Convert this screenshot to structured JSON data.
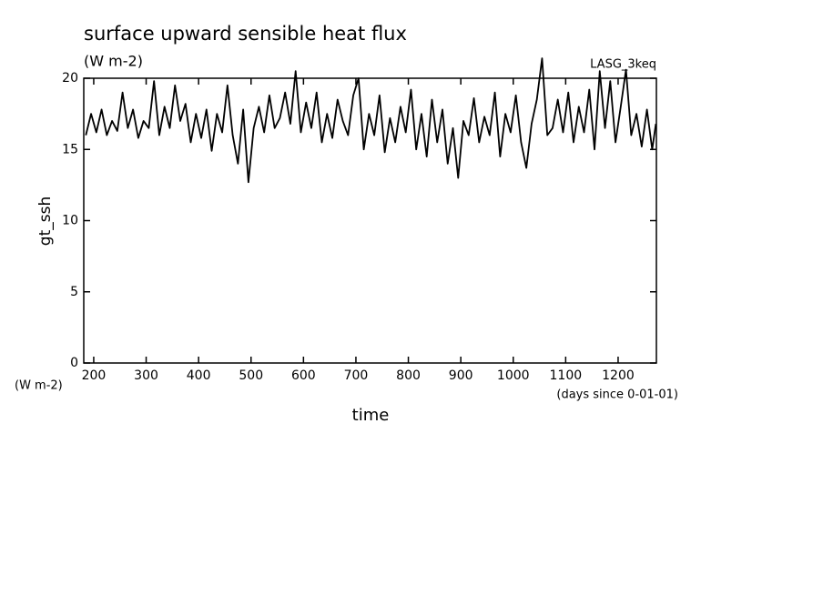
{
  "chart_data": {
    "type": "line",
    "title": "surface upward sensible heat flux",
    "subtitle": "(W m-2)",
    "annotation": "LASG_3keq",
    "y_label": "gt_ssh",
    "y_units": "(W m-2)",
    "x_label": "time",
    "x_units": "(days since 0-01-01)",
    "color": "#000000",
    "x": [
      185,
      195,
      205,
      215,
      225,
      235,
      245,
      255,
      265,
      275,
      285,
      295,
      305,
      315,
      325,
      335,
      345,
      355,
      365,
      375,
      385,
      395,
      405,
      415,
      425,
      435,
      445,
      455,
      465,
      475,
      485,
      495,
      505,
      515,
      525,
      535,
      545,
      555,
      565,
      575,
      585,
      595,
      605,
      615,
      625,
      635,
      645,
      655,
      665,
      675,
      685,
      695,
      705,
      715,
      725,
      735,
      745,
      755,
      765,
      775,
      785,
      795,
      805,
      815,
      825,
      835,
      845,
      855,
      865,
      875,
      885,
      895,
      905,
      915,
      925,
      935,
      945,
      955,
      965,
      975,
      985,
      995,
      1005,
      1015,
      1025,
      1035,
      1045,
      1055,
      1065,
      1075,
      1085,
      1095,
      1105,
      1115,
      1125,
      1135,
      1145,
      1155,
      1165,
      1175,
      1185,
      1195,
      1205,
      1215,
      1225,
      1235,
      1245,
      1255,
      1265,
      1272
    ],
    "values": [
      16.0,
      17.5,
      16.2,
      17.8,
      16.0,
      17.0,
      16.3,
      19.0,
      16.5,
      17.8,
      15.8,
      17.0,
      16.5,
      19.8,
      16.0,
      18.0,
      16.5,
      19.5,
      17.0,
      18.2,
      15.5,
      17.5,
      15.8,
      17.8,
      14.9,
      17.5,
      16.2,
      19.5,
      16.0,
      14.0,
      17.8,
      12.7,
      16.5,
      18.0,
      16.2,
      18.8,
      16.5,
      17.2,
      19.0,
      16.8,
      20.5,
      16.2,
      18.3,
      16.5,
      19.0,
      15.5,
      17.5,
      15.8,
      18.5,
      17.0,
      16.0,
      18.8,
      20.0,
      15.0,
      17.5,
      16.0,
      18.8,
      14.8,
      17.2,
      15.5,
      18.0,
      16.2,
      19.2,
      15.0,
      17.5,
      14.5,
      18.5,
      15.5,
      17.8,
      14.0,
      16.5,
      13.0,
      17.0,
      16.0,
      18.6,
      15.5,
      17.3,
      16.0,
      19.0,
      14.5,
      17.5,
      16.2,
      18.8,
      15.5,
      13.7,
      16.8,
      18.5,
      21.4,
      16.0,
      16.5,
      18.5,
      16.2,
      19.0,
      15.5,
      18.0,
      16.2,
      19.2,
      15.0,
      20.5,
      16.5,
      19.8,
      15.5,
      18.0,
      20.6,
      16.0,
      17.5,
      15.2,
      17.8,
      15.0,
      16.8
    ],
    "xlim": [
      181,
      1273
    ],
    "ylim": [
      0,
      20
    ],
    "xticks": [
      200,
      300,
      400,
      500,
      600,
      700,
      800,
      900,
      1000,
      1100,
      1200
    ],
    "yticks": [
      0,
      5,
      10,
      15,
      20
    ]
  }
}
